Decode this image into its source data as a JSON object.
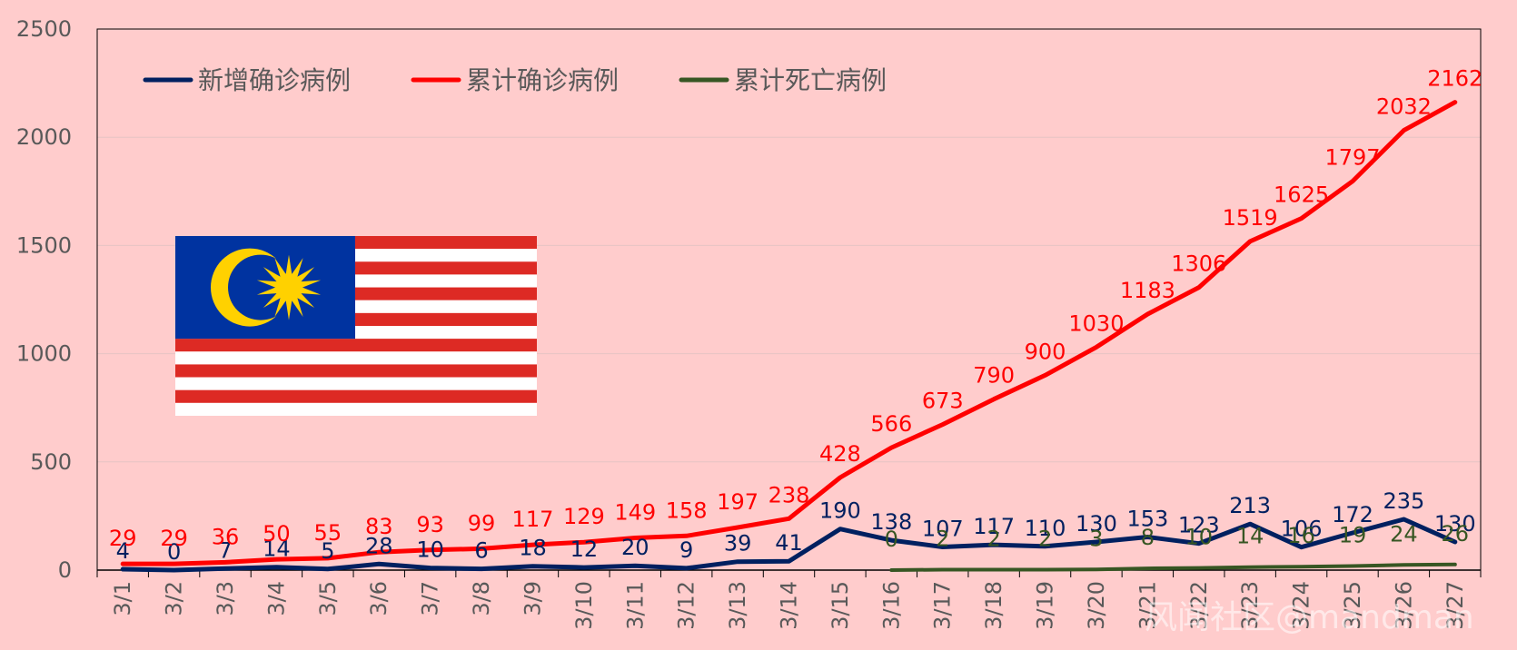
{
  "chart_data": {
    "type": "line",
    "title": "",
    "xlabel": "",
    "ylabel": "",
    "ylim": [
      0,
      2500
    ],
    "yticks": [
      0,
      500,
      1000,
      1500,
      2000,
      2500
    ],
    "grid": "horizontal",
    "legend_position": "top-left",
    "categories": [
      "3/1",
      "3/2",
      "3/3",
      "3/4",
      "3/5",
      "3/6",
      "3/7",
      "3/8",
      "3/9",
      "3/10",
      "3/11",
      "3/12",
      "3/13",
      "3/14",
      "3/15",
      "3/16",
      "3/17",
      "3/18",
      "3/19",
      "3/20",
      "3/21",
      "3/22",
      "3/23",
      "3/24",
      "3/25",
      "3/26",
      "3/27"
    ],
    "series": [
      {
        "name": "新增确诊病例",
        "color": "#002060",
        "values": [
          4,
          0,
          7,
          14,
          5,
          28,
          10,
          6,
          18,
          12,
          20,
          9,
          39,
          41,
          190,
          138,
          107,
          117,
          110,
          130,
          153,
          123,
          213,
          106,
          172,
          235,
          130
        ]
      },
      {
        "name": "累计确诊病例",
        "color": "#ff0000",
        "values": [
          29,
          29,
          36,
          50,
          55,
          83,
          93,
          99,
          117,
          129,
          149,
          158,
          197,
          238,
          428,
          566,
          673,
          790,
          900,
          1030,
          1183,
          1306,
          1519,
          1625,
          1797,
          2032,
          2162
        ]
      },
      {
        "name": "累计死亡病例",
        "color": "#375623",
        "values": [
          null,
          null,
          null,
          null,
          null,
          null,
          null,
          null,
          null,
          null,
          null,
          null,
          null,
          null,
          null,
          0,
          2,
          2,
          2,
          3,
          8,
          10,
          14,
          16,
          19,
          24,
          26
        ]
      }
    ]
  },
  "colors": {
    "background": "#ffcccc",
    "flag_blue": "#0033a0",
    "flag_red": "#dd2a24",
    "flag_yellow": "#ffd100"
  },
  "watermark": "风闻社区@mandman"
}
